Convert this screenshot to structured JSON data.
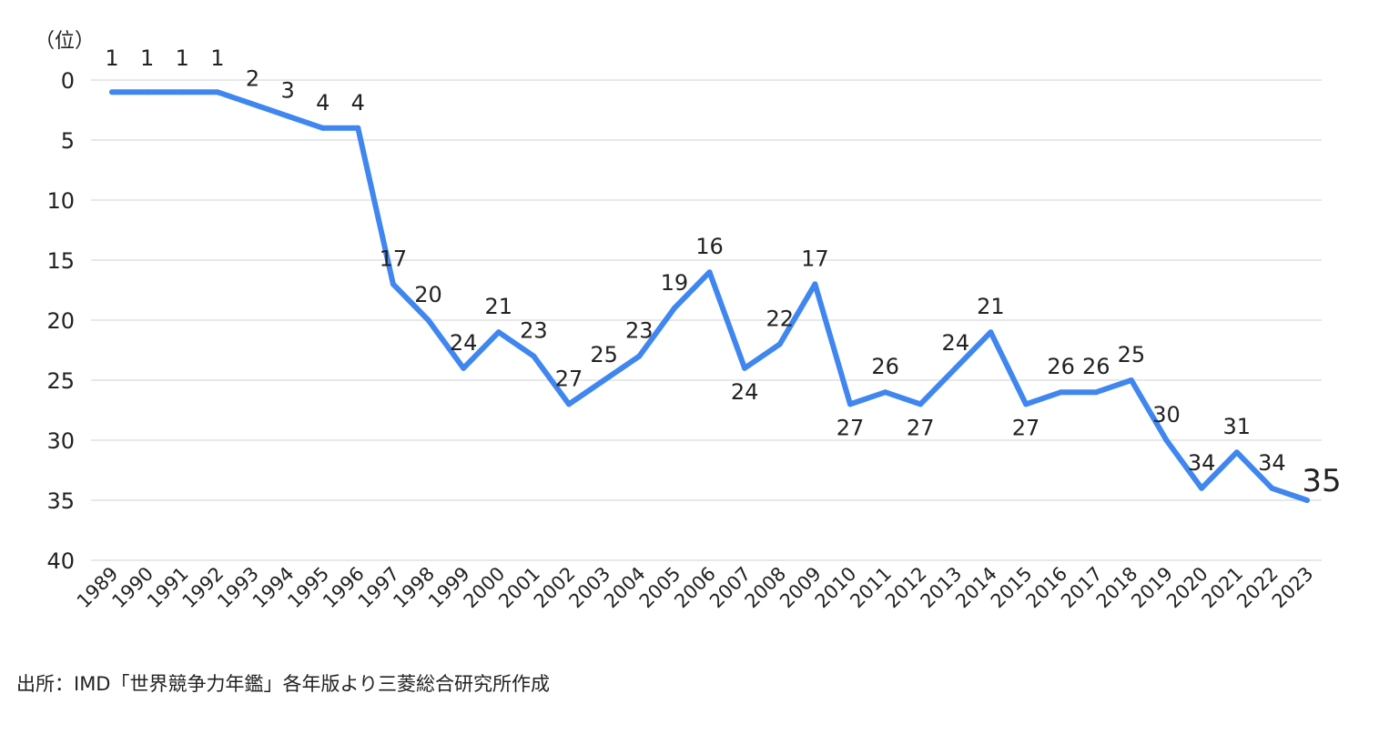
{
  "chart_data": {
    "type": "line",
    "unit_label": "（位）",
    "y_inverted": true,
    "ylim": [
      0,
      40
    ],
    "yticks": [
      0,
      5,
      10,
      15,
      20,
      25,
      30,
      35,
      40
    ],
    "grid": true,
    "legend": "none",
    "line_color": "#3f86f0",
    "categories": [
      "1989",
      "1990",
      "1991",
      "1992",
      "1993",
      "1994",
      "1995",
      "1996",
      "1997",
      "1998",
      "1999",
      "2000",
      "2001",
      "2002",
      "2003",
      "2004",
      "2005",
      "2006",
      "2007",
      "2008",
      "2009",
      "2010",
      "2011",
      "2012",
      "2013",
      "2014",
      "2015",
      "2016",
      "2017",
      "2018",
      "2019",
      "2020",
      "2021",
      "2022",
      "2023"
    ],
    "values": [
      1,
      1,
      1,
      1,
      2,
      3,
      4,
      4,
      17,
      20,
      24,
      21,
      23,
      27,
      25,
      23,
      19,
      16,
      24,
      22,
      17,
      27,
      26,
      27,
      24,
      21,
      27,
      26,
      26,
      25,
      30,
      34,
      31,
      34,
      35
    ]
  },
  "source_note": "出所：IMD「世界競争力年鑑」各年版より三菱総合研究所作成"
}
